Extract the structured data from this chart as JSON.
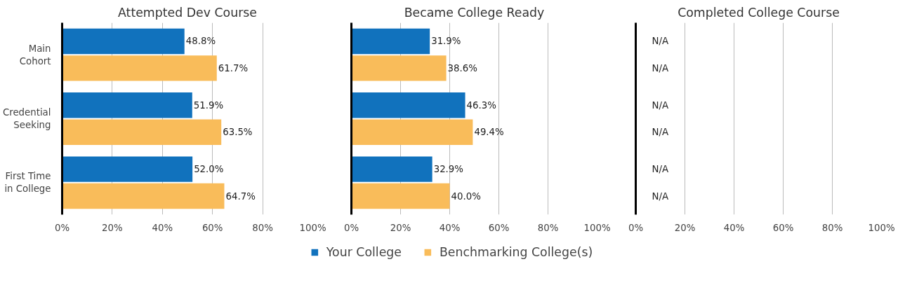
{
  "chart_data": [
    {
      "type": "bar",
      "orientation": "horizontal",
      "title": "Attempted Dev Course",
      "categories": [
        "Main Cohort",
        "Credential Seeking",
        "First Time in College"
      ],
      "series": [
        {
          "name": "Your College",
          "color": "#1172bd",
          "values": [
            48.8,
            51.9,
            52.0
          ],
          "value_labels": [
            "48.8%",
            "51.9%",
            "52.0%"
          ]
        },
        {
          "name": "Benchmarking College(s)",
          "color": "#f9bc5a",
          "values": [
            61.7,
            63.5,
            64.7
          ],
          "value_labels": [
            "61.7%",
            "63.5%",
            "64.7%"
          ]
        }
      ],
      "xlim": [
        0,
        100
      ],
      "xticks": [
        {
          "value": 0,
          "label": "0%"
        },
        {
          "value": 20,
          "label": "20%"
        },
        {
          "value": 40,
          "label": "40%"
        },
        {
          "value": 60,
          "label": "60%"
        },
        {
          "value": 80,
          "label": "80%"
        },
        {
          "value": 100,
          "label": "100%"
        }
      ],
      "grid": "x",
      "legend": "bottom"
    },
    {
      "type": "bar",
      "orientation": "horizontal",
      "title": "Became College Ready",
      "categories": [
        null,
        null,
        null
      ],
      "series": [
        {
          "color": "#1172bd",
          "values": [
            31.9,
            46.3,
            32.9
          ],
          "value_labels": [
            "31.9%",
            "46.3%",
            "32.9%"
          ]
        },
        {
          "color": "#f9bc5a",
          "values": [
            38.6,
            49.4,
            40.0
          ],
          "value_labels": [
            "38.6%",
            "49.4%",
            "40.0%"
          ]
        }
      ],
      "xlim": [
        0,
        100
      ],
      "xticks": [
        {
          "value": 0,
          "label": "0%"
        },
        {
          "value": 20,
          "label": "20%"
        },
        {
          "value": 40,
          "label": "40%"
        },
        {
          "value": 60,
          "label": "60%"
        },
        {
          "value": 80,
          "label": "80%"
        },
        {
          "value": 100,
          "label": "100%"
        }
      ],
      "grid": "x"
    },
    {
      "type": "bar",
      "orientation": "horizontal",
      "title": "Completed College Course",
      "categories": [
        null,
        null,
        null
      ],
      "series": [
        {
          "color": "#1172bd",
          "values": [
            null,
            null,
            null
          ],
          "value_labels": [
            "N/A",
            "N/A",
            "N/A"
          ]
        },
        {
          "color": "#f9bc5a",
          "values": [
            null,
            null,
            null
          ],
          "value_labels": [
            "N/A",
            "N/A",
            "N/A"
          ]
        }
      ],
      "xlim": [
        0,
        100
      ],
      "xticks": [
        {
          "value": 0,
          "label": "0%"
        },
        {
          "value": 20,
          "label": "20%"
        },
        {
          "value": 40,
          "label": "40%"
        },
        {
          "value": 60,
          "label": "60%"
        },
        {
          "value": 80,
          "label": "80%"
        },
        {
          "value": 100,
          "label": "100%"
        }
      ],
      "grid": "x"
    }
  ]
}
